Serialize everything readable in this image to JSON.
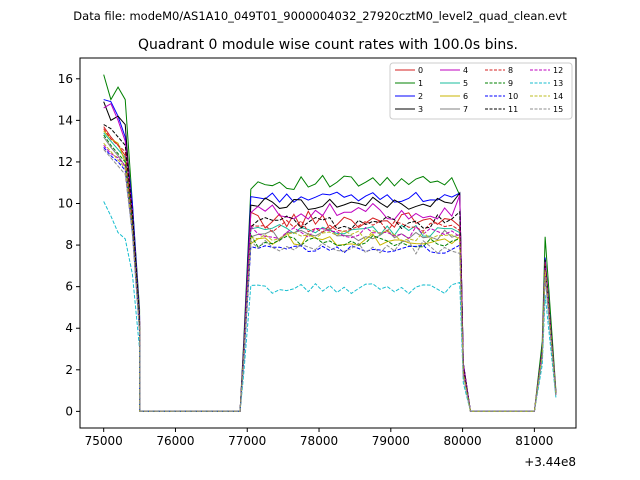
{
  "suptitle": "Data file: modeM0/AS1A10_049T01_9000004032_27920cztM0_level2_quad_clean.evt",
  "chart_data": {
    "type": "line",
    "title": "Quadrant 0 module wise count rates with 100.0s bins.",
    "xlabel": "",
    "ylabel": "",
    "x_offset_label": "+3.44e8",
    "xlim": [
      74670,
      81580
    ],
    "ylim": [
      -0.8,
      17.0
    ],
    "xticks": [
      75000,
      76000,
      77000,
      78000,
      79000,
      80000,
      81000
    ],
    "xtick_labels": [
      "75000",
      "76000",
      "77000",
      "78000",
      "79000",
      "80000",
      "81000"
    ],
    "yticks": [
      0,
      2,
      4,
      6,
      8,
      10,
      12,
      14,
      16
    ],
    "ytick_labels": [
      "0",
      "2",
      "4",
      "6",
      "8",
      "10",
      "12",
      "14",
      "16"
    ],
    "grid": false,
    "legend_placement": "top-right",
    "segments": [
      {
        "start": 75000,
        "end": 75500
      },
      {
        "start": 75500,
        "end": 76900
      },
      {
        "start": 76900,
        "end": 79980
      },
      {
        "start": 80050,
        "end": 81000
      },
      {
        "start": 81000,
        "end": 81300
      }
    ],
    "series": [
      {
        "name": "0",
        "color": "#d62020",
        "dash": "solid",
        "pass_a": [
          13.7,
          13.2,
          12.8,
          12.3,
          9.4,
          4.3
        ],
        "pass_b_base": 9.2,
        "pass_b_noise": 0.45,
        "pass_b_end": 8.9,
        "pass_c_peak": 7.0
      },
      {
        "name": "1",
        "color": "#008000",
        "dash": "solid",
        "pass_a": [
          16.2,
          15.0,
          15.6,
          15.0,
          10.0,
          4.9
        ],
        "pass_b_base": 11.0,
        "pass_b_noise": 0.35,
        "pass_b_end": 10.4,
        "pass_c_peak": 8.4
      },
      {
        "name": "2",
        "color": "#0000ff",
        "dash": "solid",
        "pass_a": [
          15.0,
          14.9,
          14.2,
          13.2,
          10.0,
          4.6
        ],
        "pass_b_base": 10.3,
        "pass_b_noise": 0.25,
        "pass_b_end": 10.5,
        "pass_c_peak": 7.4
      },
      {
        "name": "3",
        "color": "#000000",
        "dash": "solid",
        "pass_a": [
          14.9,
          14.0,
          14.2,
          13.8,
          9.2,
          4.3
        ],
        "pass_b_base": 10.0,
        "pass_b_noise": 0.3,
        "pass_b_end": 10.5,
        "pass_c_peak": 7.3
      },
      {
        "name": "4",
        "color": "#bf00bf",
        "dash": "solid",
        "pass_a": [
          14.6,
          14.8,
          14.0,
          13.0,
          9.6,
          4.5
        ],
        "pass_b_base": 9.6,
        "pass_b_noise": 0.4,
        "pass_b_end": 10.4,
        "pass_c_peak": 7.2
      },
      {
        "name": "5",
        "color": "#1abc9c",
        "dash": "solid",
        "pass_a": [
          13.4,
          13.0,
          12.6,
          12.2,
          9.2,
          4.1
        ],
        "pass_b_base": 8.7,
        "pass_b_noise": 0.3,
        "pass_b_end": 8.6,
        "pass_c_peak": 6.8
      },
      {
        "name": "6",
        "color": "#c8b400",
        "dash": "solid",
        "pass_a": [
          13.5,
          13.1,
          12.9,
          12.0,
          9.0,
          4.0
        ],
        "pass_b_base": 8.3,
        "pass_b_noise": 0.35,
        "pass_b_end": 8.4,
        "pass_c_peak": 6.9
      },
      {
        "name": "7",
        "color": "#808080",
        "dash": "solid",
        "pass_a": [
          13.2,
          12.7,
          12.3,
          11.8,
          8.9,
          4.0
        ],
        "pass_b_base": 8.5,
        "pass_b_noise": 0.3,
        "pass_b_end": 8.5,
        "pass_c_peak": 6.7
      },
      {
        "name": "8",
        "color": "#d62020",
        "dash": "dashed",
        "pass_a": [
          13.6,
          13.1,
          12.8,
          12.5,
          9.3,
          4.2
        ],
        "pass_b_base": 8.9,
        "pass_b_noise": 0.3,
        "pass_b_end": 8.7,
        "pass_c_peak": 7.1
      },
      {
        "name": "9",
        "color": "#008000",
        "dash": "dashed",
        "pass_a": [
          13.3,
          12.8,
          12.4,
          12.0,
          9.1,
          4.1
        ],
        "pass_b_base": 8.2,
        "pass_b_noise": 0.3,
        "pass_b_end": 8.3,
        "pass_c_peak": 6.8
      },
      {
        "name": "10",
        "color": "#0000ff",
        "dash": "dashed",
        "pass_a": [
          12.7,
          12.3,
          12.0,
          11.6,
          8.6,
          3.8
        ],
        "pass_b_base": 7.8,
        "pass_b_noise": 0.2,
        "pass_b_end": 8.0,
        "pass_c_peak": 6.6
      },
      {
        "name": "11",
        "color": "#000000",
        "dash": "dashed",
        "pass_a": [
          13.8,
          13.6,
          13.2,
          12.8,
          9.6,
          4.4
        ],
        "pass_b_base": 9.1,
        "pass_b_noise": 0.35,
        "pass_b_end": 9.6,
        "pass_c_peak": 7.0
      },
      {
        "name": "12",
        "color": "#bf00bf",
        "dash": "dashed",
        "pass_a": [
          12.8,
          12.4,
          12.2,
          11.8,
          8.8,
          3.9
        ],
        "pass_b_base": 8.6,
        "pass_b_noise": 0.3,
        "pass_b_end": 8.4,
        "pass_c_peak": 6.9
      },
      {
        "name": "13",
        "color": "#17becf",
        "dash": "dashed",
        "pass_a": [
          10.1,
          9.4,
          8.6,
          8.3,
          6.6,
          3.0
        ],
        "pass_b_base": 5.9,
        "pass_b_noise": 0.25,
        "pass_b_end": 6.2,
        "pass_c_peak": 5.6
      },
      {
        "name": "14",
        "color": "#bcbd22",
        "dash": "dashed",
        "pass_a": [
          12.9,
          12.5,
          12.1,
          11.7,
          8.7,
          3.9
        ],
        "pass_b_base": 8.4,
        "pass_b_noise": 0.3,
        "pass_b_end": 8.3,
        "pass_c_peak": 6.8
      },
      {
        "name": "15",
        "color": "#8c8c8c",
        "dash": "dashed",
        "pass_a": [
          12.6,
          12.2,
          11.8,
          11.4,
          8.5,
          3.8
        ],
        "pass_b_base": 7.9,
        "pass_b_noise": 0.35,
        "pass_b_end": 7.6,
        "pass_c_peak": 6.5
      }
    ]
  }
}
